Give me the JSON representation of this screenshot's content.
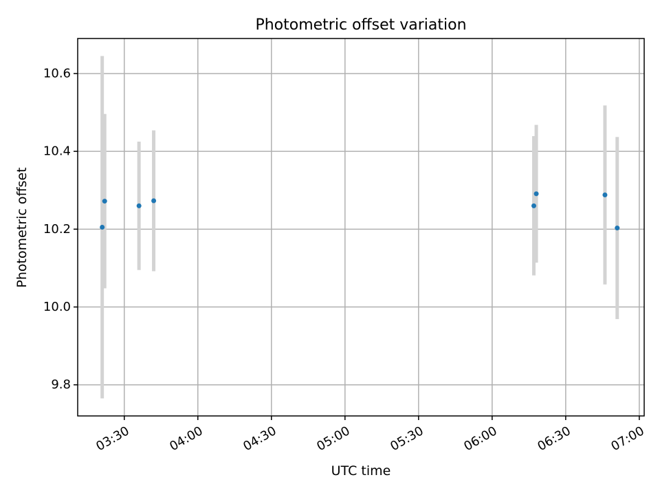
{
  "chart_data": {
    "type": "scatter",
    "title": "Photometric offset variation",
    "xlabel": "UTC time",
    "ylabel": "Photometric offset",
    "x_axis": {
      "type": "time",
      "range": [
        "03:11",
        "07:02"
      ],
      "ticks": [
        "03:30",
        "04:00",
        "04:30",
        "05:00",
        "05:30",
        "06:00",
        "06:30",
        "07:00"
      ]
    },
    "y_axis": {
      "range": [
        9.72,
        10.69
      ],
      "ticks": [
        9.8,
        10.0,
        10.2,
        10.4,
        10.6
      ]
    },
    "grid": true,
    "point_color": "#1f77b4",
    "errorbar_color": "#d3d3d3",
    "points": [
      {
        "x": "03:21",
        "y": 10.205,
        "err": 0.44
      },
      {
        "x": "03:22",
        "y": 10.272,
        "err": 0.224
      },
      {
        "x": "03:36",
        "y": 10.26,
        "err": 0.165
      },
      {
        "x": "03:42",
        "y": 10.273,
        "err": 0.181
      },
      {
        "x": "06:17",
        "y": 10.26,
        "err": 0.179
      },
      {
        "x": "06:18",
        "y": 10.291,
        "err": 0.177
      },
      {
        "x": "06:46",
        "y": 10.288,
        "err": 0.23
      },
      {
        "x": "06:51",
        "y": 10.203,
        "err": 0.234
      }
    ]
  }
}
